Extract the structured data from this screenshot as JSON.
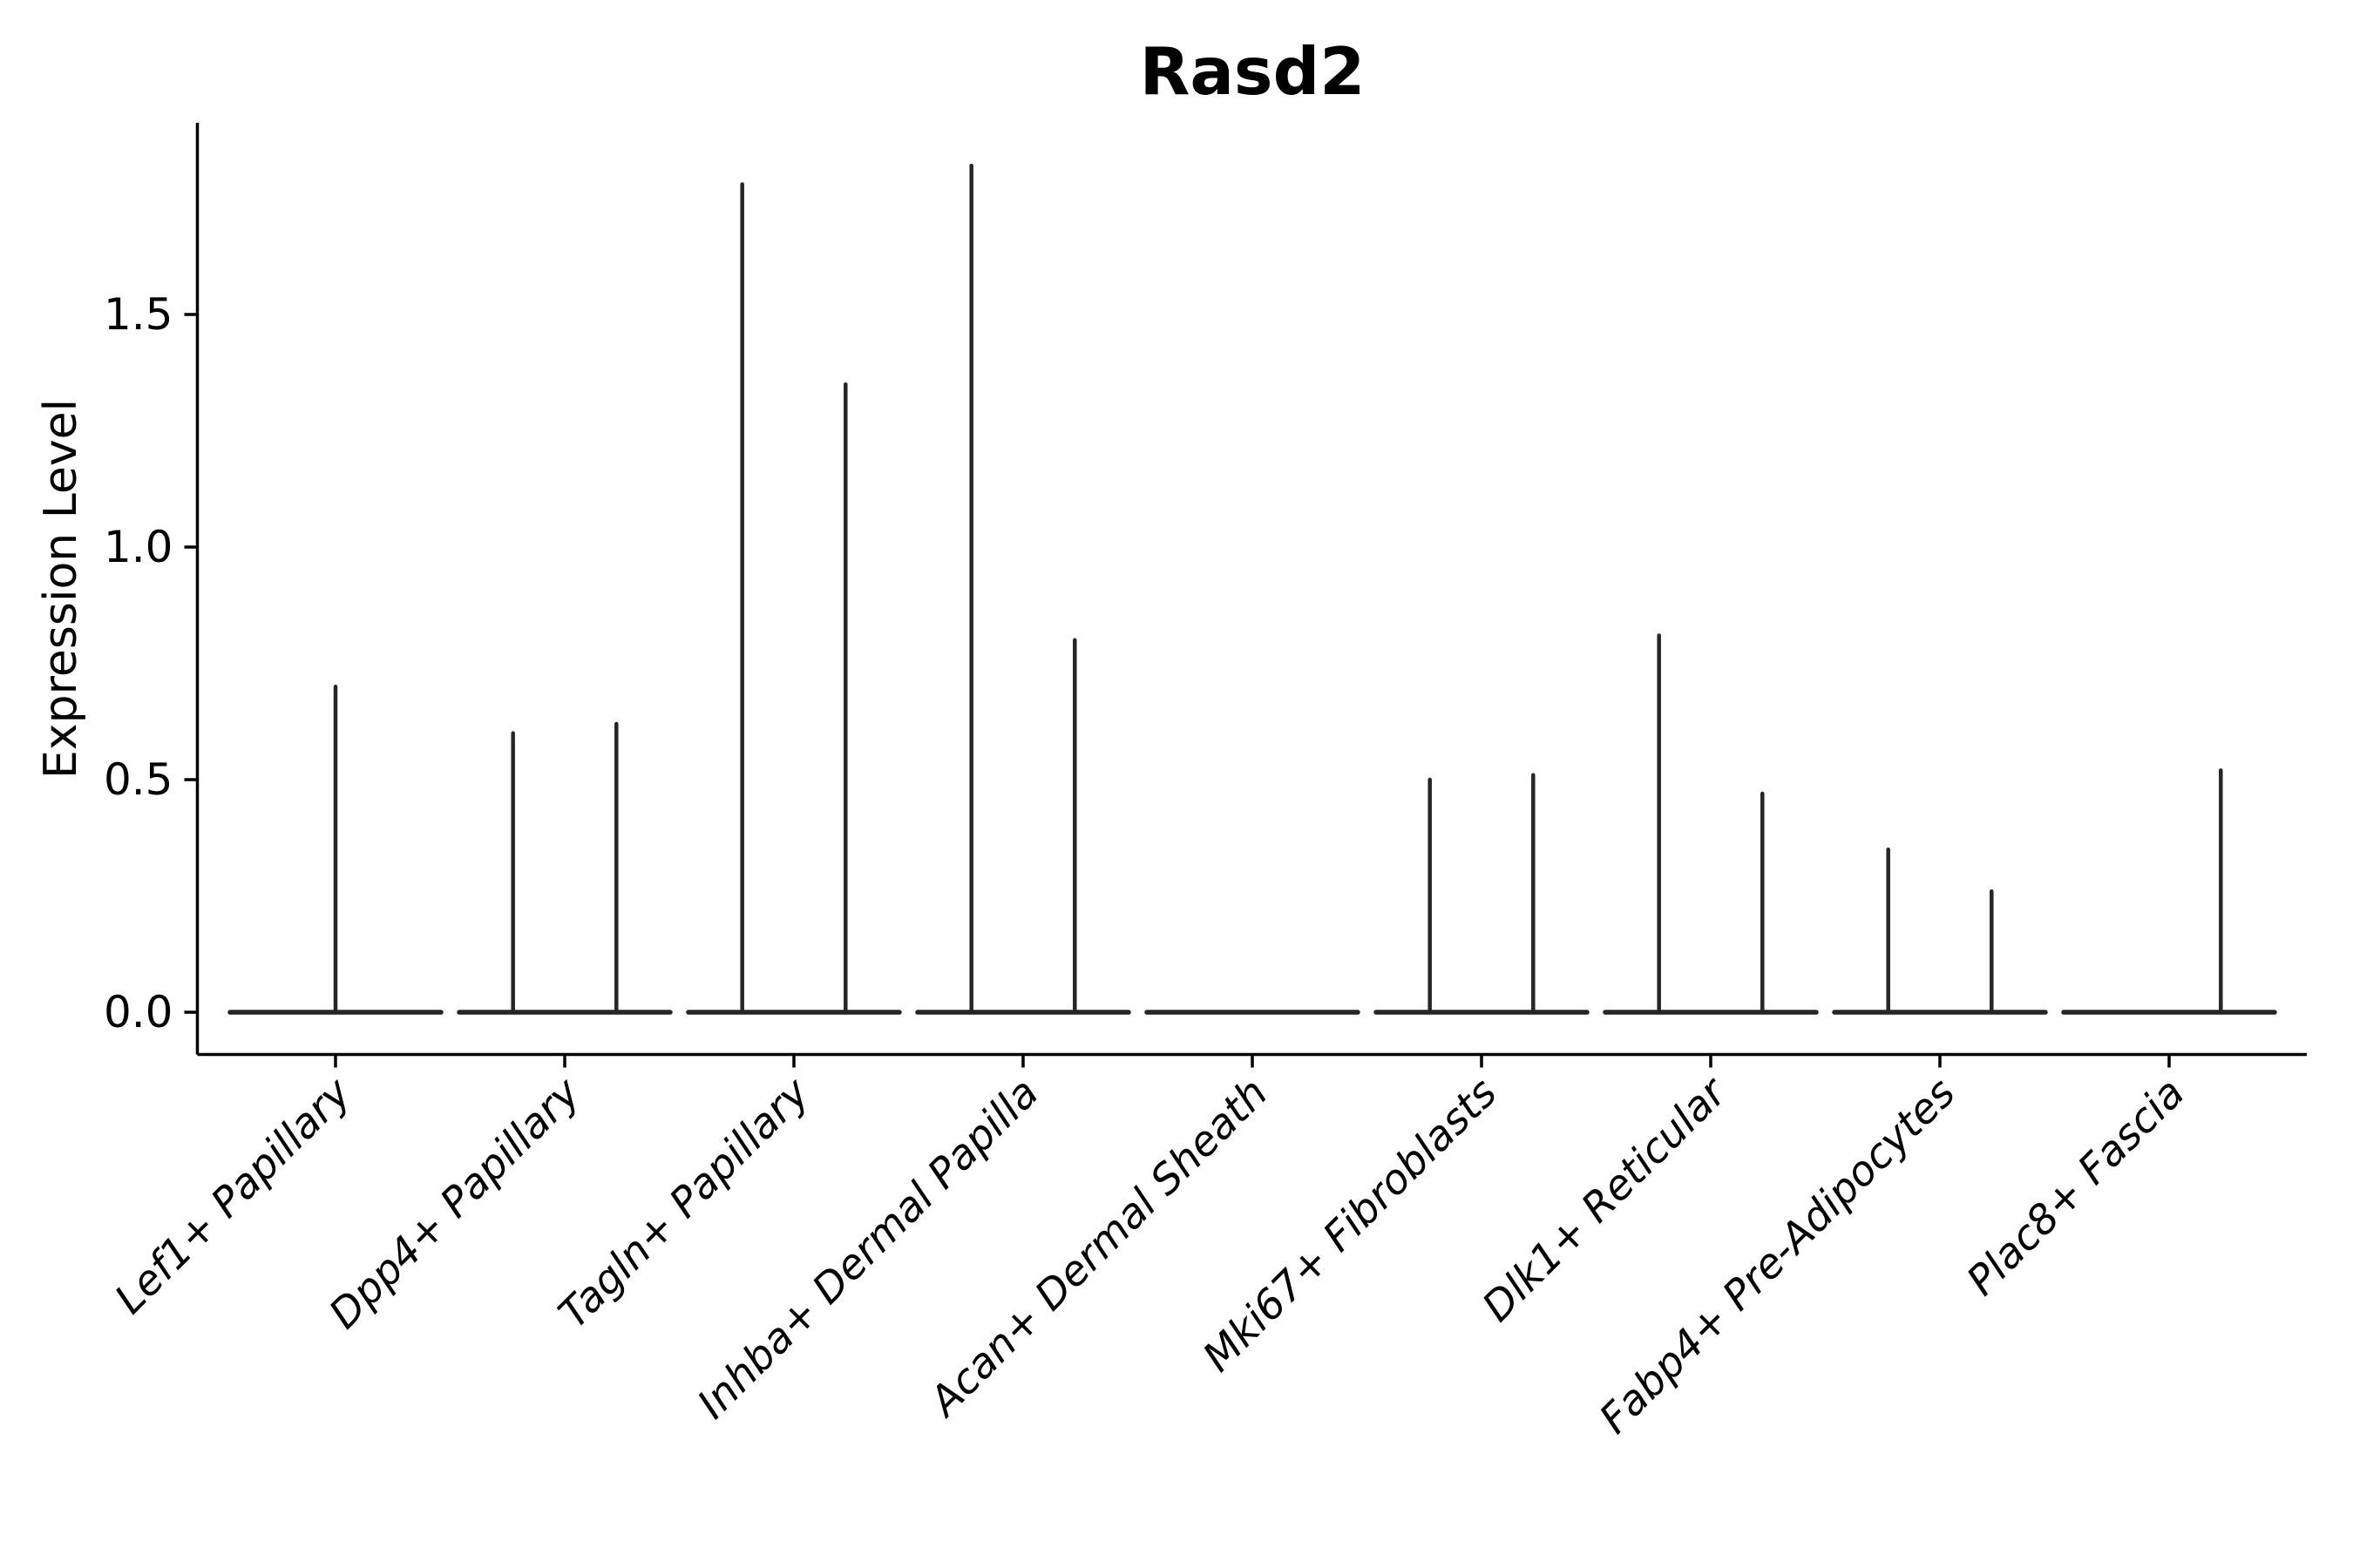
{
  "chart_data": {
    "type": "violin",
    "title": "Rasd2",
    "xlabel": "",
    "ylabel": "Expression Level",
    "ylim": [
      -0.09,
      1.9
    ],
    "grid": false,
    "legend_position": "none",
    "colors": {
      "axis": "#000000",
      "violin_stroke": "#262626",
      "background": "#ffffff"
    },
    "yticks": [
      {
        "label": "0.0",
        "value": 0.0
      },
      {
        "label": "0.5",
        "value": 0.5
      },
      {
        "label": "1.0",
        "value": 1.0
      },
      {
        "label": "1.5",
        "value": 1.5
      }
    ],
    "categories": [
      "Lef1+ Papillary",
      "Dpp4+ Papillary",
      "Tagln+ Papillary",
      "Inhba+ Dermal Papilla",
      "Acan+ Dermal Sheath",
      "Mki67+ Fibroblasts",
      "Dlk1+ Reticular",
      "Fabp4+ Pre-Adipocytes",
      "Plac8+ Fascia"
    ],
    "violins": [
      {
        "category": "Lef1+ Papillary",
        "baseline_value": 0.0,
        "spikes": [
          {
            "position": "center",
            "max": 0.7
          }
        ]
      },
      {
        "category": "Dpp4+ Papillary",
        "baseline_value": 0.0,
        "spikes": [
          {
            "position": "left",
            "max": 0.6
          },
          {
            "position": "right",
            "max": 0.62
          }
        ]
      },
      {
        "category": "Tagln+ Papillary",
        "baseline_value": 0.0,
        "spikes": [
          {
            "position": "left",
            "max": 1.78
          },
          {
            "position": "right",
            "max": 1.35
          }
        ]
      },
      {
        "category": "Inhba+ Dermal Papilla",
        "baseline_value": 0.0,
        "spikes": [
          {
            "position": "left",
            "max": 1.82
          },
          {
            "position": "right",
            "max": 0.8
          }
        ]
      },
      {
        "category": "Acan+ Dermal Sheath",
        "baseline_value": 0.0,
        "spikes": []
      },
      {
        "category": "Mki67+ Fibroblasts",
        "baseline_value": 0.0,
        "spikes": [
          {
            "position": "left",
            "max": 0.5
          },
          {
            "position": "right",
            "max": 0.51
          }
        ]
      },
      {
        "category": "Dlk1+ Reticular",
        "baseline_value": 0.0,
        "spikes": [
          {
            "position": "left",
            "max": 0.81
          },
          {
            "position": "right",
            "max": 0.47
          }
        ]
      },
      {
        "category": "Fabp4+ Pre-Adipocytes",
        "baseline_value": 0.0,
        "spikes": [
          {
            "position": "left",
            "max": 0.35
          },
          {
            "position": "right",
            "max": 0.26
          }
        ]
      },
      {
        "category": "Plac8+ Fascia",
        "baseline_value": 0.0,
        "spikes": [
          {
            "position": "right",
            "max": 0.52
          }
        ]
      }
    ]
  }
}
